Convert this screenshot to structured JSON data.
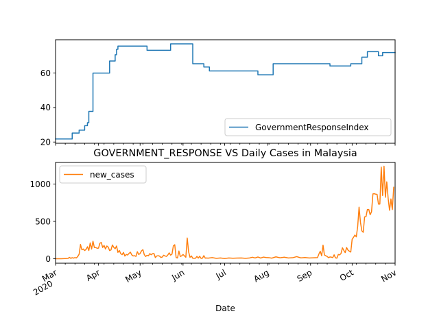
{
  "chart_data": [
    {
      "type": "line",
      "panel": "top",
      "title": "",
      "xlabel": "",
      "ylabel": "",
      "x_range": [
        "2020-03-01",
        "2020-11-01"
      ],
      "ylim": [
        19.3,
        79.3
      ],
      "yticks": [
        20,
        40,
        60
      ],
      "legend": {
        "placement": "lower-right"
      },
      "grid": false,
      "series": [
        {
          "name": "GovernmentResponseIndex",
          "color": "#1f77b4",
          "points": [
            [
              "2020-03-01",
              21.8
            ],
            [
              "2020-03-13",
              21.8
            ],
            [
              "2020-03-13",
              25.2
            ],
            [
              "2020-03-18",
              25.2
            ],
            [
              "2020-03-18",
              26.9
            ],
            [
              "2020-03-22",
              26.9
            ],
            [
              "2020-03-22",
              29.5
            ],
            [
              "2020-03-24",
              29.5
            ],
            [
              "2020-03-24",
              31.2
            ],
            [
              "2020-03-25",
              31.2
            ],
            [
              "2020-03-25",
              37.8
            ],
            [
              "2020-03-28",
              37.8
            ],
            [
              "2020-03-28",
              60.0
            ],
            [
              "2020-04-09",
              60.0
            ],
            [
              "2020-04-09",
              67.0
            ],
            [
              "2020-04-13",
              67.0
            ],
            [
              "2020-04-13",
              70.6
            ],
            [
              "2020-04-14",
              70.6
            ],
            [
              "2020-04-14",
              73.8
            ],
            [
              "2020-04-15",
              73.8
            ],
            [
              "2020-04-15",
              75.6
            ],
            [
              "2020-05-06",
              75.6
            ],
            [
              "2020-05-06",
              73.2
            ],
            [
              "2020-05-23",
              73.2
            ],
            [
              "2020-05-23",
              76.9
            ],
            [
              "2020-06-08",
              76.9
            ],
            [
              "2020-06-08",
              65.4
            ],
            [
              "2020-06-16",
              65.4
            ],
            [
              "2020-06-16",
              63.5
            ],
            [
              "2020-06-20",
              63.5
            ],
            [
              "2020-06-20",
              61.2
            ],
            [
              "2020-07-25",
              61.2
            ],
            [
              "2020-07-25",
              59.0
            ],
            [
              "2020-08-05",
              59.0
            ],
            [
              "2020-08-05",
              65.4
            ],
            [
              "2020-09-15",
              65.4
            ],
            [
              "2020-09-15",
              64.1
            ],
            [
              "2020-09-30",
              64.1
            ],
            [
              "2020-09-30",
              65.4
            ],
            [
              "2020-10-08",
              65.4
            ],
            [
              "2020-10-08",
              69.2
            ],
            [
              "2020-10-12",
              69.2
            ],
            [
              "2020-10-12",
              72.4
            ],
            [
              "2020-10-20",
              72.4
            ],
            [
              "2020-10-20",
              70.0
            ],
            [
              "2020-10-23",
              70.0
            ],
            [
              "2020-10-23",
              71.9
            ],
            [
              "2020-11-01",
              71.9
            ]
          ]
        }
      ]
    },
    {
      "type": "line",
      "panel": "bottom",
      "title": "GOVERNMENT_RESPONSE VS Daily Cases in Malaysia",
      "xlabel": "Date",
      "ylabel": "",
      "x_range": [
        "2020-03-01",
        "2020-11-01"
      ],
      "ylim": [
        -60,
        1290
      ],
      "yticks": [
        0,
        500,
        1000
      ],
      "xticks": [
        {
          "date": "2020-03-01",
          "label": "Mar",
          "sublabel": "2020"
        },
        {
          "date": "2020-04-01",
          "label": "Apr"
        },
        {
          "date": "2020-05-01",
          "label": "May"
        },
        {
          "date": "2020-06-01",
          "label": "Jun"
        },
        {
          "date": "2020-07-01",
          "label": "Jul"
        },
        {
          "date": "2020-08-01",
          "label": "Aug"
        },
        {
          "date": "2020-09-01",
          "label": "Sep"
        },
        {
          "date": "2020-10-01",
          "label": "Oct"
        },
        {
          "date": "2020-11-01",
          "label": "Nov"
        }
      ],
      "legend": {
        "placement": "upper-left"
      },
      "grid": false,
      "series": [
        {
          "name": "new_cases",
          "color": "#ff7f0e",
          "points": [
            [
              "2020-03-01",
              0
            ],
            [
              "2020-03-05",
              0
            ],
            [
              "2020-03-08",
              2
            ],
            [
              "2020-03-10",
              4
            ],
            [
              "2020-03-11",
              18
            ],
            [
              "2020-03-12",
              5
            ],
            [
              "2020-03-13",
              14
            ],
            [
              "2020-03-14",
              8
            ],
            [
              "2020-03-15",
              15
            ],
            [
              "2020-03-16",
              10
            ],
            [
              "2020-03-17",
              30
            ],
            [
              "2020-03-18",
              60
            ],
            [
              "2020-03-19",
              190
            ],
            [
              "2020-03-20",
              120
            ],
            [
              "2020-03-21",
              130
            ],
            [
              "2020-03-22",
              110
            ],
            [
              "2020-03-23",
              125
            ],
            [
              "2020-03-24",
              160
            ],
            [
              "2020-03-25",
              110
            ],
            [
              "2020-03-26",
              212
            ],
            [
              "2020-03-27",
              130
            ],
            [
              "2020-03-28",
              235
            ],
            [
              "2020-03-29",
              150
            ],
            [
              "2020-03-30",
              150
            ],
            [
              "2020-03-31",
              140
            ],
            [
              "2020-04-01",
              142
            ],
            [
              "2020-04-02",
              208
            ],
            [
              "2020-04-03",
              217
            ],
            [
              "2020-04-04",
              150
            ],
            [
              "2020-04-05",
              179
            ],
            [
              "2020-04-06",
              131
            ],
            [
              "2020-04-07",
              170
            ],
            [
              "2020-04-08",
              156
            ],
            [
              "2020-04-09",
              109
            ],
            [
              "2020-04-10",
              118
            ],
            [
              "2020-04-11",
              184
            ],
            [
              "2020-04-12",
              153
            ],
            [
              "2020-04-13",
              134
            ],
            [
              "2020-04-14",
              170
            ],
            [
              "2020-04-15",
              85
            ],
            [
              "2020-04-16",
              110
            ],
            [
              "2020-04-17",
              69
            ],
            [
              "2020-04-18",
              54
            ],
            [
              "2020-04-19",
              84
            ],
            [
              "2020-04-20",
              36
            ],
            [
              "2020-04-21",
              57
            ],
            [
              "2020-04-22",
              50
            ],
            [
              "2020-04-23",
              71
            ],
            [
              "2020-04-24",
              88
            ],
            [
              "2020-04-25",
              51
            ],
            [
              "2020-04-26",
              38
            ],
            [
              "2020-04-27",
              40
            ],
            [
              "2020-04-28",
              31
            ],
            [
              "2020-04-29",
              94
            ],
            [
              "2020-04-30",
              57
            ],
            [
              "2020-05-01",
              69
            ],
            [
              "2020-05-02",
              105
            ],
            [
              "2020-05-03",
              122
            ],
            [
              "2020-05-04",
              55
            ],
            [
              "2020-05-05",
              30
            ],
            [
              "2020-05-06",
              45
            ],
            [
              "2020-05-07",
              39
            ],
            [
              "2020-05-08",
              68
            ],
            [
              "2020-05-09",
              54
            ],
            [
              "2020-05-10",
              67
            ],
            [
              "2020-05-11",
              70
            ],
            [
              "2020-05-12",
              16
            ],
            [
              "2020-05-13",
              37
            ],
            [
              "2020-05-14",
              40
            ],
            [
              "2020-05-15",
              36
            ],
            [
              "2020-05-16",
              17
            ],
            [
              "2020-05-17",
              22
            ],
            [
              "2020-05-18",
              47
            ],
            [
              "2020-05-19",
              37
            ],
            [
              "2020-05-20",
              31
            ],
            [
              "2020-05-21",
              50
            ],
            [
              "2020-05-22",
              78
            ],
            [
              "2020-05-23",
              48
            ],
            [
              "2020-05-24",
              60
            ],
            [
              "2020-05-25",
              172
            ],
            [
              "2020-05-26",
              187
            ],
            [
              "2020-05-27",
              15
            ],
            [
              "2020-05-28",
              10
            ],
            [
              "2020-05-29",
              103
            ],
            [
              "2020-05-30",
              30
            ],
            [
              "2020-05-31",
              38
            ],
            [
              "2020-06-01",
              57
            ],
            [
              "2020-06-02",
              38
            ],
            [
              "2020-06-03",
              20
            ],
            [
              "2020-06-04",
              277
            ],
            [
              "2020-06-05",
              93
            ],
            [
              "2020-06-06",
              19
            ],
            [
              "2020-06-07",
              37
            ],
            [
              "2020-06-08",
              7
            ],
            [
              "2020-06-09",
              5
            ],
            [
              "2020-06-10",
              7
            ],
            [
              "2020-06-11",
              31
            ],
            [
              "2020-06-12",
              8
            ],
            [
              "2020-06-13",
              33
            ],
            [
              "2020-06-14",
              4
            ],
            [
              "2020-06-15",
              8
            ],
            [
              "2020-06-16",
              41
            ],
            [
              "2020-06-17",
              8
            ],
            [
              "2020-06-18",
              10
            ],
            [
              "2020-06-19",
              8
            ],
            [
              "2020-06-22",
              15
            ],
            [
              "2020-06-25",
              5
            ],
            [
              "2020-06-28",
              10
            ],
            [
              "2020-07-01",
              3
            ],
            [
              "2020-07-04",
              10
            ],
            [
              "2020-07-07",
              6
            ],
            [
              "2020-07-10",
              9
            ],
            [
              "2020-07-13",
              10
            ],
            [
              "2020-07-16",
              5
            ],
            [
              "2020-07-19",
              10
            ],
            [
              "2020-07-21",
              20
            ],
            [
              "2020-07-23",
              10
            ],
            [
              "2020-07-25",
              23
            ],
            [
              "2020-07-27",
              9
            ],
            [
              "2020-07-29",
              22
            ],
            [
              "2020-07-31",
              16
            ],
            [
              "2020-08-02",
              14
            ],
            [
              "2020-08-04",
              8
            ],
            [
              "2020-08-07",
              25
            ],
            [
              "2020-08-10",
              12
            ],
            [
              "2020-08-13",
              20
            ],
            [
              "2020-08-16",
              10
            ],
            [
              "2020-08-19",
              13
            ],
            [
              "2020-08-22",
              28
            ],
            [
              "2020-08-25",
              11
            ],
            [
              "2020-08-28",
              16
            ],
            [
              "2020-08-31",
              10
            ],
            [
              "2020-09-03",
              12
            ],
            [
              "2020-09-06",
              15
            ],
            [
              "2020-09-07",
              62
            ],
            [
              "2020-09-08",
              100
            ],
            [
              "2020-09-09",
              40
            ],
            [
              "2020-09-10",
              182
            ],
            [
              "2020-09-11",
              50
            ],
            [
              "2020-09-12",
              40
            ],
            [
              "2020-09-13",
              30
            ],
            [
              "2020-09-14",
              14
            ],
            [
              "2020-09-15",
              24
            ],
            [
              "2020-09-16",
              21
            ],
            [
              "2020-09-17",
              15
            ],
            [
              "2020-09-18",
              52
            ],
            [
              "2020-09-19",
              11
            ],
            [
              "2020-09-20",
              8
            ],
            [
              "2020-09-21",
              57
            ],
            [
              "2020-09-22",
              51
            ],
            [
              "2020-09-23",
              71
            ],
            [
              "2020-09-24",
              147
            ],
            [
              "2020-09-25",
              111
            ],
            [
              "2020-09-26",
              82
            ],
            [
              "2020-09-27",
              150
            ],
            [
              "2020-09-28",
              115
            ],
            [
              "2020-09-29",
              101
            ],
            [
              "2020-09-30",
              89
            ],
            [
              "2020-10-01",
              260
            ],
            [
              "2020-10-02",
              287
            ],
            [
              "2020-10-03",
              317
            ],
            [
              "2020-10-04",
              293
            ],
            [
              "2020-10-05",
              432
            ],
            [
              "2020-10-06",
              691
            ],
            [
              "2020-10-07",
              489
            ],
            [
              "2020-10-08",
              374
            ],
            [
              "2020-10-09",
              354
            ],
            [
              "2020-10-10",
              561
            ],
            [
              "2020-10-11",
              563
            ],
            [
              "2020-10-12",
              660
            ],
            [
              "2020-10-13",
              660
            ],
            [
              "2020-10-14",
              589
            ],
            [
              "2020-10-15",
              629
            ],
            [
              "2020-10-16",
              869
            ],
            [
              "2020-10-17",
              871
            ],
            [
              "2020-10-18",
              865
            ],
            [
              "2020-10-19",
              862
            ],
            [
              "2020-10-20",
              732
            ],
            [
              "2020-10-21",
              732
            ],
            [
              "2020-10-22",
              1228
            ],
            [
              "2020-10-23",
              847
            ],
            [
              "2020-10-24",
              1240
            ],
            [
              "2020-10-25",
              823
            ],
            [
              "2020-10-26",
              1030
            ],
            [
              "2020-10-27",
              805
            ],
            [
              "2020-10-28",
              649
            ],
            [
              "2020-10-29",
              801
            ],
            [
              "2020-10-30",
              659
            ],
            [
              "2020-10-31",
              957
            ]
          ]
        }
      ]
    }
  ]
}
